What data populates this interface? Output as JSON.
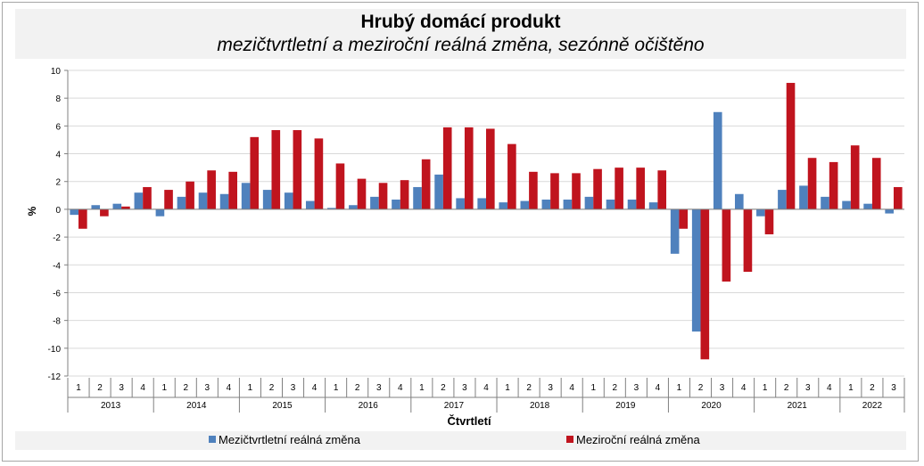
{
  "chart_data": {
    "type": "bar",
    "title": "Hrubý domácí produkt",
    "subtitle": "mezičtvrtletní a meziroční reálná změna, sezónně očištěno",
    "xlabel": "Čtvrtletí",
    "ylabel": "%",
    "ylim": [
      -12,
      10
    ],
    "yticks": [
      -12,
      -10,
      -8,
      -6,
      -4,
      -2,
      0,
      2,
      4,
      6,
      8,
      10
    ],
    "grid": true,
    "legend_position": "bottom",
    "years": [
      "2013",
      "2014",
      "2015",
      "2016",
      "2017",
      "2018",
      "2019",
      "2020",
      "2021",
      "2022"
    ],
    "categories": [
      "1",
      "2",
      "3",
      "4",
      "1",
      "2",
      "3",
      "4",
      "1",
      "2",
      "3",
      "4",
      "1",
      "2",
      "3",
      "4",
      "1",
      "2",
      "3",
      "4",
      "1",
      "2",
      "3",
      "4",
      "1",
      "2",
      "3",
      "4",
      "1",
      "2",
      "3",
      "4",
      "1",
      "2",
      "3",
      "4",
      "1",
      "2",
      "3"
    ],
    "series": [
      {
        "name": "Mezičtvrtletní reálná změna",
        "color": "#4f81bd",
        "values": [
          -0.4,
          0.3,
          0.4,
          1.2,
          -0.5,
          0.9,
          1.2,
          1.1,
          1.9,
          1.4,
          1.2,
          0.6,
          0.1,
          0.3,
          0.9,
          0.7,
          1.6,
          2.5,
          0.8,
          0.8,
          0.5,
          0.6,
          0.7,
          0.7,
          0.9,
          0.7,
          0.7,
          0.5,
          -3.2,
          -8.8,
          7.0,
          1.1,
          -0.5,
          1.4,
          1.7,
          0.9,
          0.6,
          0.4,
          -0.3
        ]
      },
      {
        "name": "Meziroční reálná změna",
        "color": "#c0141e",
        "values": [
          -1.4,
          -0.5,
          0.2,
          1.6,
          1.4,
          2.0,
          2.8,
          2.7,
          5.2,
          5.7,
          5.7,
          5.1,
          3.3,
          2.2,
          1.9,
          2.1,
          3.6,
          5.9,
          5.9,
          5.8,
          4.7,
          2.7,
          2.6,
          2.6,
          2.9,
          3.0,
          3.0,
          2.8,
          -1.4,
          -10.8,
          -5.2,
          -4.5,
          -1.8,
          9.1,
          3.7,
          3.4,
          4.6,
          3.7,
          1.6
        ]
      }
    ]
  }
}
